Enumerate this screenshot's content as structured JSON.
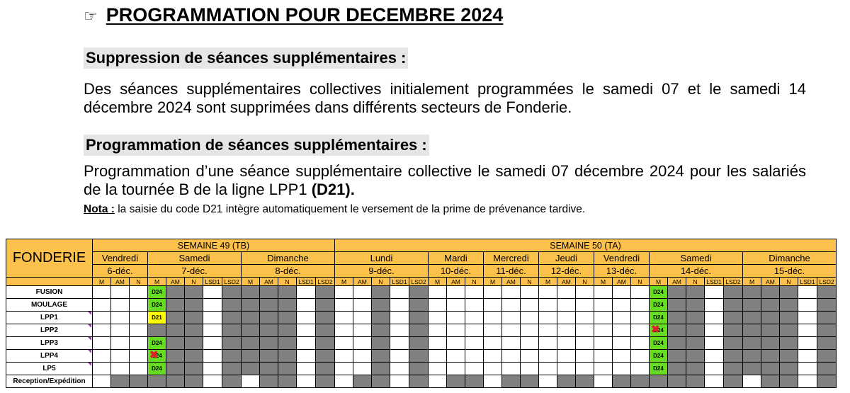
{
  "title": {
    "icon": "☞",
    "text": "PROGRAMMATION POUR DECEMBRE 2024"
  },
  "section1": {
    "heading": "Suppression de séances supplémentaires :",
    "text": "Des séances supplémentaires collectives initialement programmées le samedi 07 et le samedi 14 décembre 2024 sont supprimées dans différents secteurs de Fonderie."
  },
  "section2": {
    "heading": "Programmation de séances supplémentaires :",
    "text_before": "Programmation d’une séance supplémentaire collective le samedi 07 décembre 2024 pour les salariés de la tournée B de la ligne LPP1 ",
    "text_bold": "(D21)."
  },
  "nota": {
    "label": "Nota :",
    "text": " la saisie du code D21 intègre automatiquement le versement de la prime de prévenance tardive."
  },
  "table": {
    "corner": "FONDERIE",
    "weeks": [
      {
        "label": "SEMAINE 49 (TB)",
        "span": 13
      },
      {
        "label": "SEMAINE 50 (TA)",
        "span": 27
      }
    ],
    "days": [
      {
        "name": "Vendredi",
        "date": "6-déc.",
        "shifts": [
          "M",
          "AM",
          "N"
        ]
      },
      {
        "name": "Samedi",
        "date": "7-déc.",
        "shifts": [
          "M",
          "AM",
          "N",
          "LSD1",
          "LSD2"
        ]
      },
      {
        "name": "Dimanche",
        "date": "8-déc.",
        "shifts": [
          "M",
          "AM",
          "N",
          "LSD1",
          "LSD2"
        ]
      },
      {
        "name": "Lundi",
        "date": "9-déc.",
        "shifts": [
          "M",
          "AM",
          "N",
          "LSD1",
          "LSD2"
        ]
      },
      {
        "name": "Mardi",
        "date": "10-déc.",
        "shifts": [
          "M",
          "AM",
          "N"
        ]
      },
      {
        "name": "Mercredi",
        "date": "11-déc.",
        "shifts": [
          "M",
          "AM",
          "N"
        ]
      },
      {
        "name": "Jeudi",
        "date": "12-déc.",
        "shifts": [
          "M",
          "AM",
          "N"
        ]
      },
      {
        "name": "Vendredi",
        "date": "13-déc.",
        "shifts": [
          "M",
          "AM",
          "N"
        ]
      },
      {
        "name": "Samedi",
        "date": "14-déc.",
        "shifts": [
          "M",
          "AM",
          "N",
          "LSD1",
          "LSD2"
        ]
      },
      {
        "name": "Dimanche",
        "date": "15-déc.",
        "shifts": [
          "M",
          "AM",
          "N",
          "LSD1",
          "LSD2"
        ]
      }
    ],
    "codes": {
      "D24": "D24",
      "D21": "D21"
    },
    "colors": {
      "header": "#fcc14a",
      "grey": "#808080",
      "green": "#66dd22",
      "yellow": "#ffff00",
      "cross": "#e0202a"
    },
    "rows": [
      {
        "label": "FUSION",
        "marker": false,
        "sat7": "green:D24",
        "sat14": "green:D24"
      },
      {
        "label": "MOULAGE",
        "marker": false,
        "sat7": "green:D24",
        "sat14": "green:D24"
      },
      {
        "label": "LPP1",
        "marker": true,
        "sat7": "yellow:D21",
        "sat14": "green:D24"
      },
      {
        "label": "LPP2",
        "marker": true,
        "sat7": "grey",
        "sat14": "cross:D24"
      },
      {
        "label": "LPP3",
        "marker": true,
        "sat7": "green:D24",
        "sat14": "green:D24"
      },
      {
        "label": "LPP4",
        "marker": true,
        "sat7": "cross:D24",
        "sat14": "green:D24"
      },
      {
        "label": "LP5",
        "marker": true,
        "sat7": "green:D24",
        "sat14": "green:D24"
      },
      {
        "label": "Reception/Expédition",
        "marker": false,
        "sat7": "grey",
        "sat14": "grey"
      }
    ]
  }
}
